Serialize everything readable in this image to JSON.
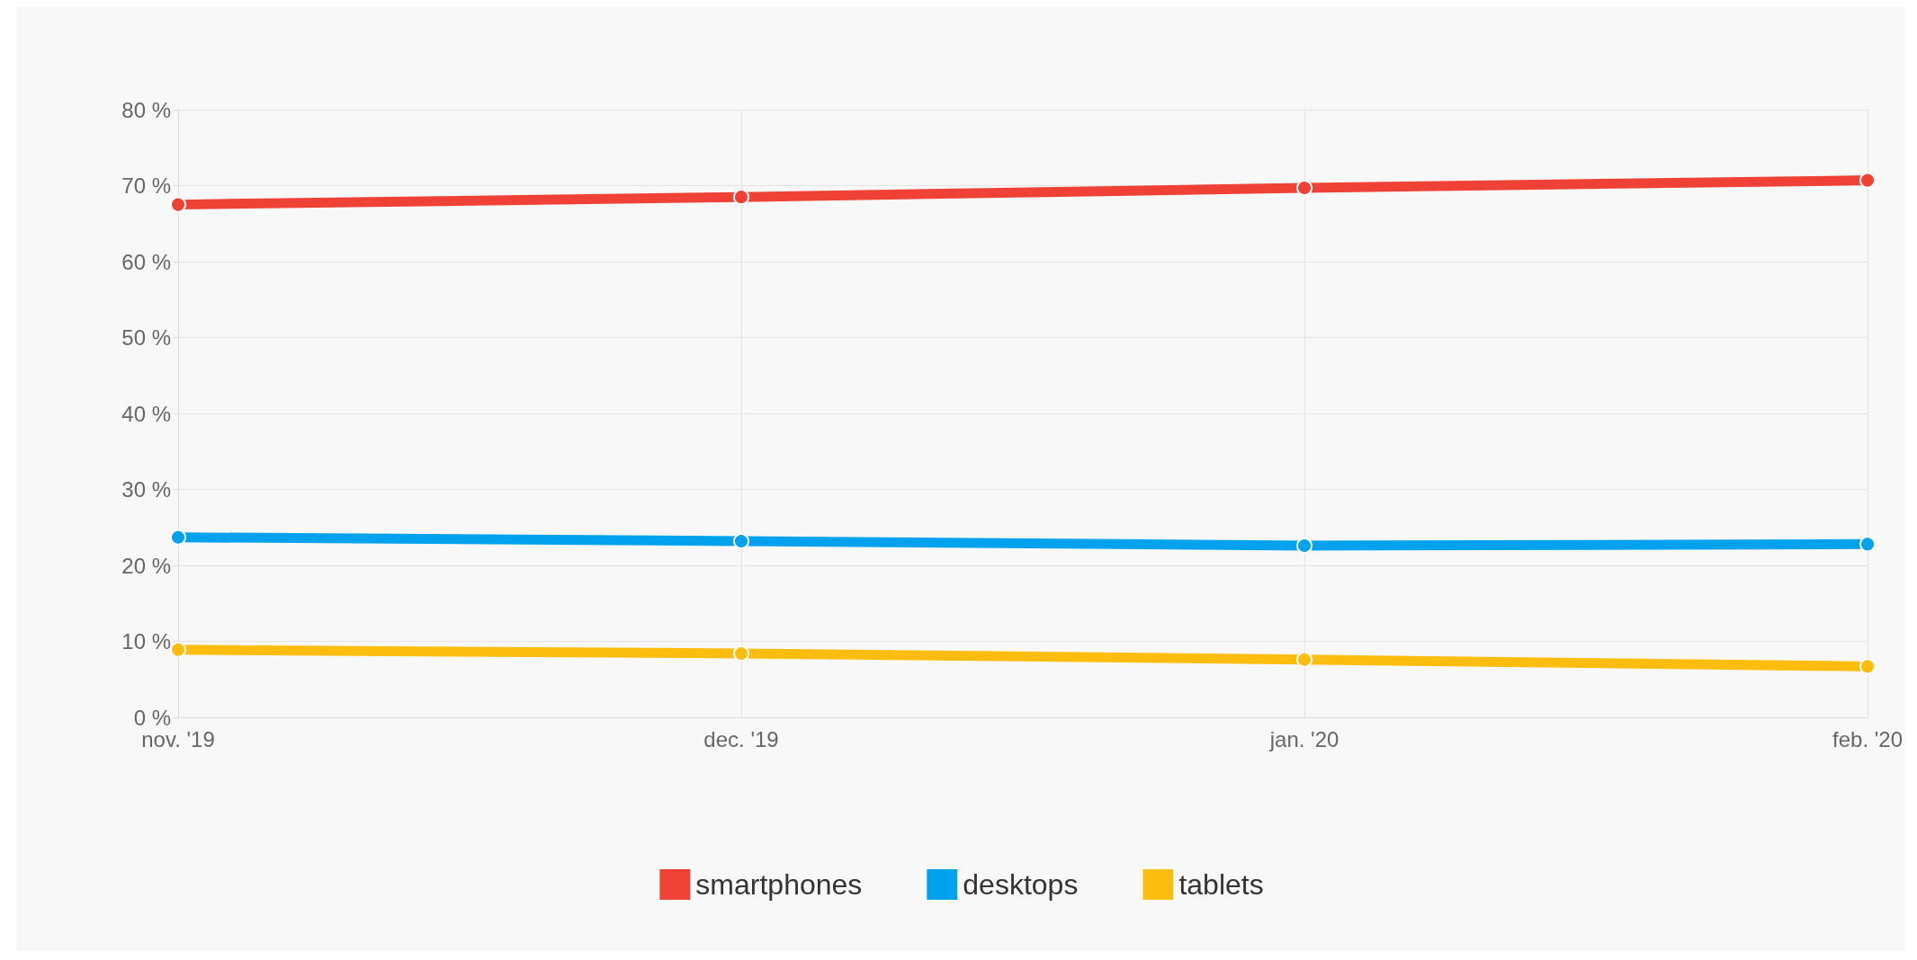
{
  "chart_data": {
    "type": "line",
    "categories": [
      "nov. '19",
      "dec. '19",
      "jan. '20",
      "feb. '20"
    ],
    "series": [
      {
        "name": "smartphones",
        "color": "#ef4136",
        "values": [
          67.5,
          68.5,
          69.7,
          70.7
        ]
      },
      {
        "name": "desktops",
        "color": "#00a2ed",
        "values": [
          23.7,
          23.2,
          22.6,
          22.8
        ]
      },
      {
        "name": "tablets",
        "color": "#fdbd0f",
        "values": [
          8.9,
          8.4,
          7.6,
          6.7
        ]
      }
    ],
    "ylim": [
      0,
      80
    ],
    "yticks": [
      {
        "value": 0,
        "label": "0 %"
      },
      {
        "value": 10,
        "label": "10 %"
      },
      {
        "value": 20,
        "label": "20 %"
      },
      {
        "value": 30,
        "label": "30 %"
      },
      {
        "value": 40,
        "label": "40 %"
      },
      {
        "value": 50,
        "label": "50 %"
      },
      {
        "value": 60,
        "label": "60 %"
      },
      {
        "value": 70,
        "label": "70 %"
      },
      {
        "value": 80,
        "label": "80 %"
      }
    ],
    "grid": true,
    "legend": "bottom",
    "marker": "circle",
    "line_style": "solid"
  }
}
